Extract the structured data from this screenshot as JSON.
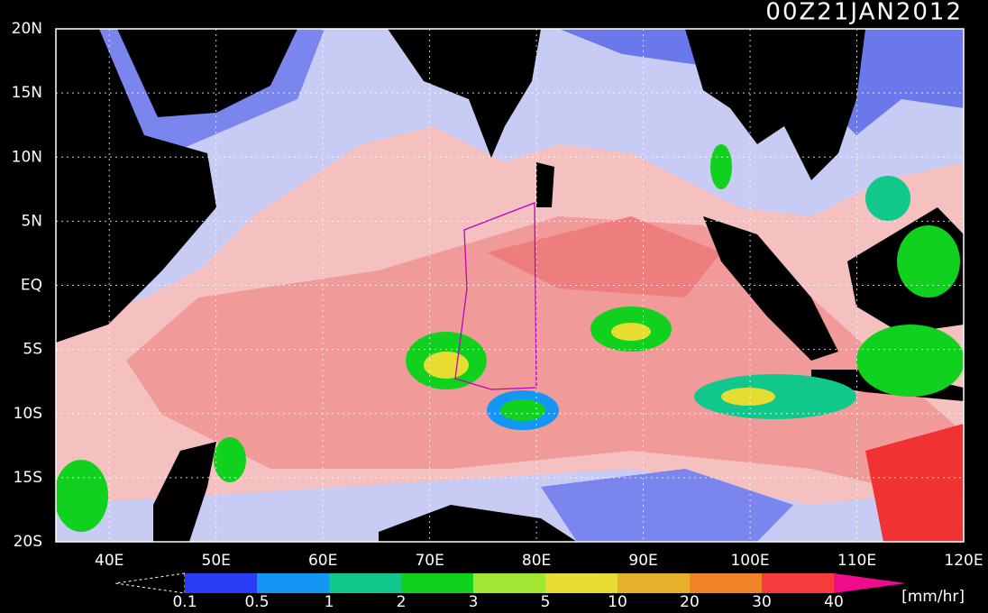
{
  "map": {
    "title": "00Z21JAN2012",
    "xlim": [
      35,
      120
    ],
    "ylim": [
      -20,
      20
    ],
    "xticks": [
      {
        "value": 40,
        "label": "40E"
      },
      {
        "value": 50,
        "label": "50E"
      },
      {
        "value": 60,
        "label": "60E"
      },
      {
        "value": 70,
        "label": "70E"
      },
      {
        "value": 80,
        "label": "80E"
      },
      {
        "value": 90,
        "label": "90E"
      },
      {
        "value": 100,
        "label": "100E"
      },
      {
        "value": 110,
        "label": "110E"
      },
      {
        "value": 120,
        "label": "120E"
      }
    ],
    "yticks": [
      {
        "value": 20,
        "label": "20N"
      },
      {
        "value": 15,
        "label": "15N"
      },
      {
        "value": 10,
        "label": "10N"
      },
      {
        "value": 5,
        "label": "5N"
      },
      {
        "value": 0,
        "label": "EQ"
      },
      {
        "value": -5,
        "label": "5S"
      },
      {
        "value": -10,
        "label": "10S"
      },
      {
        "value": -15,
        "label": "15S"
      },
      {
        "value": -20,
        "label": "20S"
      }
    ],
    "grid": true,
    "colorbar": {
      "levels": [
        0.1,
        0.5,
        1,
        2,
        3,
        5,
        10,
        20,
        30,
        40
      ],
      "colors": [
        "#2a3cf5",
        "#1496f5",
        "#10c88c",
        "#10d21e",
        "#a0e632",
        "#e6dc32",
        "#e6b02d",
        "#f08228",
        "#f53c3c",
        "#f00a8c"
      ],
      "unit": "[mm/hr]"
    }
  }
}
